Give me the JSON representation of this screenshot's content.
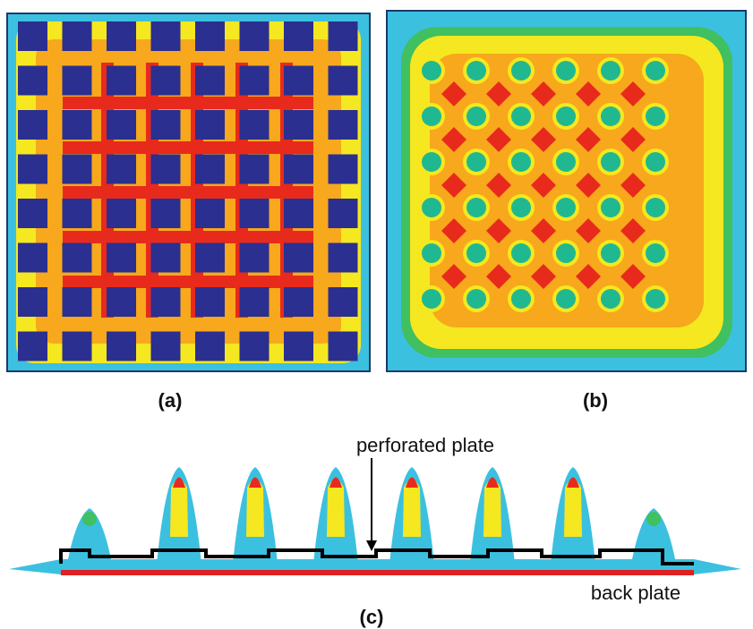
{
  "panels": [
    {
      "label": "(a)"
    },
    {
      "label": "(b)"
    },
    {
      "label": "(c)"
    }
  ],
  "annotations": {
    "perforated_plate": "perforated plate",
    "back_plate": "back plate"
  }
}
